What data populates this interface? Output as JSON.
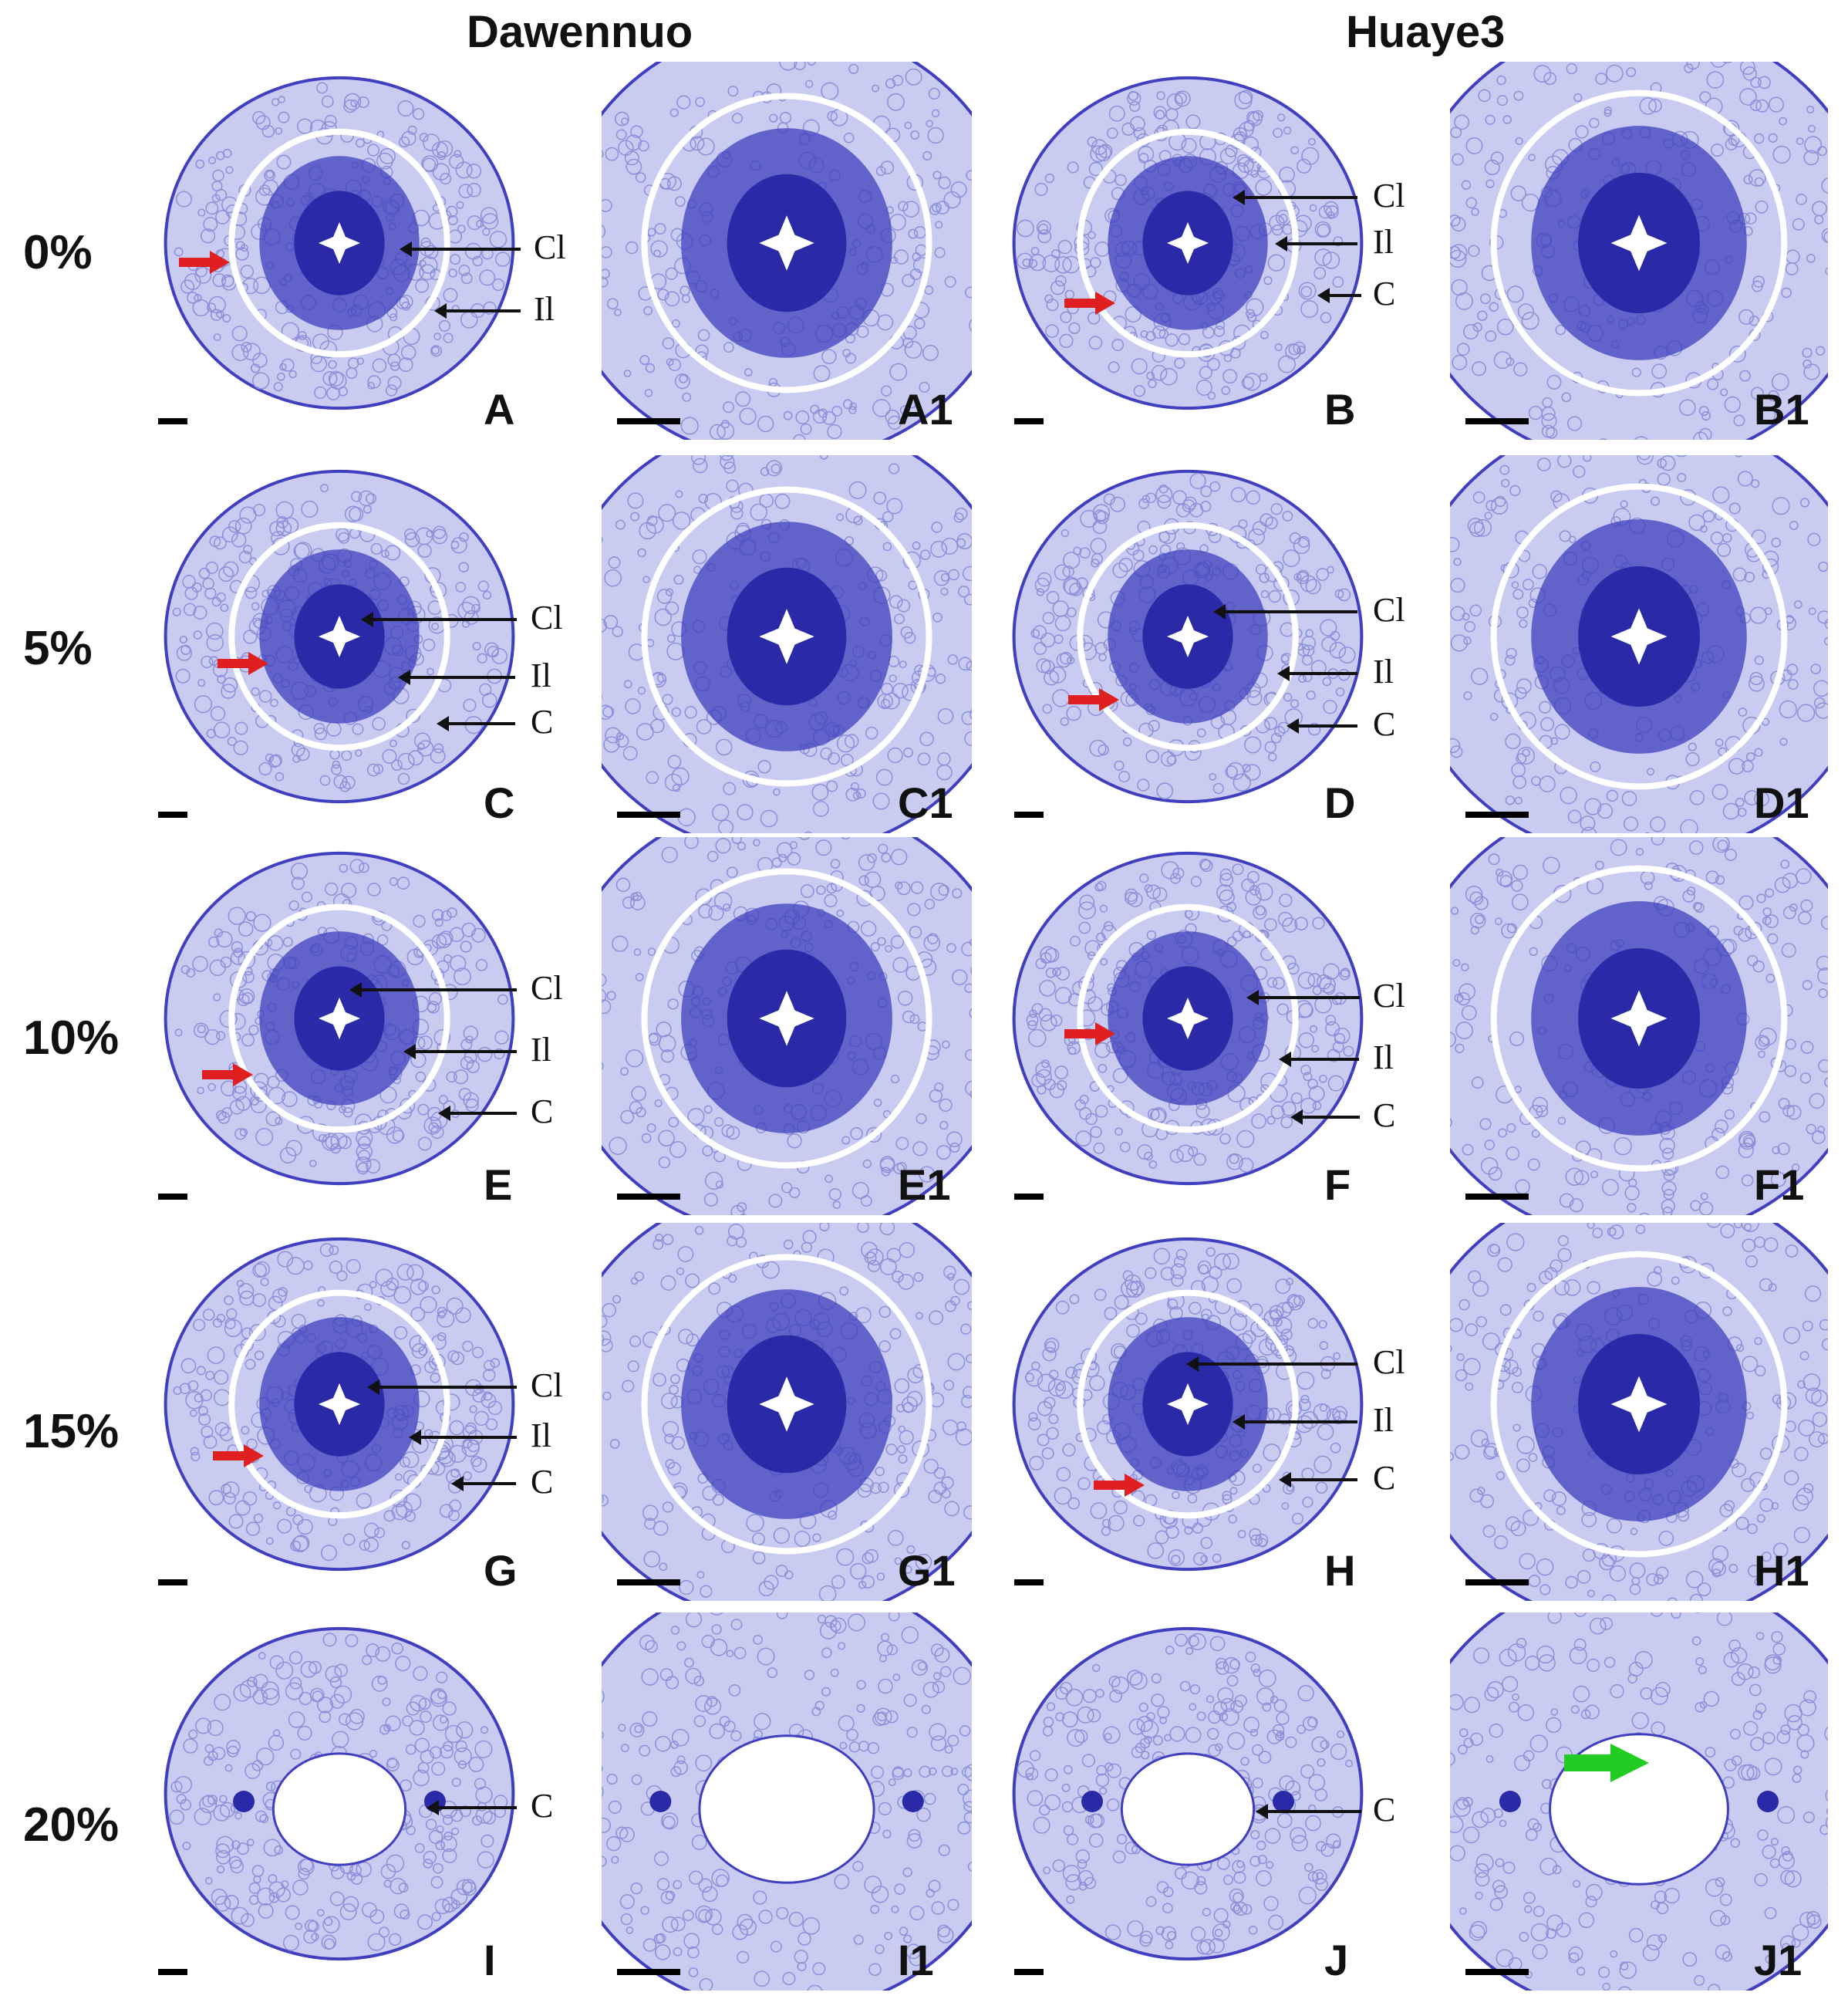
{
  "headers": {
    "left": "Dawennuo",
    "right": "Huaye3"
  },
  "rows": [
    {
      "label": "0%",
      "panels": [
        "A",
        "A1",
        "B",
        "B1"
      ]
    },
    {
      "label": "5%",
      "panels": [
        "C",
        "C1",
        "D",
        "D1"
      ]
    },
    {
      "label": "10%",
      "panels": [
        "E",
        "E1",
        "F",
        "F1"
      ]
    },
    {
      "label": "15%",
      "panels": [
        "G",
        "G1",
        "H",
        "H1"
      ]
    },
    {
      "label": "20%",
      "panels": [
        "I",
        "I1",
        "J",
        "J1"
      ]
    }
  ],
  "annotations": {
    "cl": "Cl",
    "il": "Il",
    "c": "C"
  },
  "colors": {
    "stain": "#3f3fbf",
    "stain_dark": "#2a2aa8",
    "stain_light": "#c9ccf0",
    "red_arrow": "#e02020",
    "green_arrow": "#22cc22"
  }
}
